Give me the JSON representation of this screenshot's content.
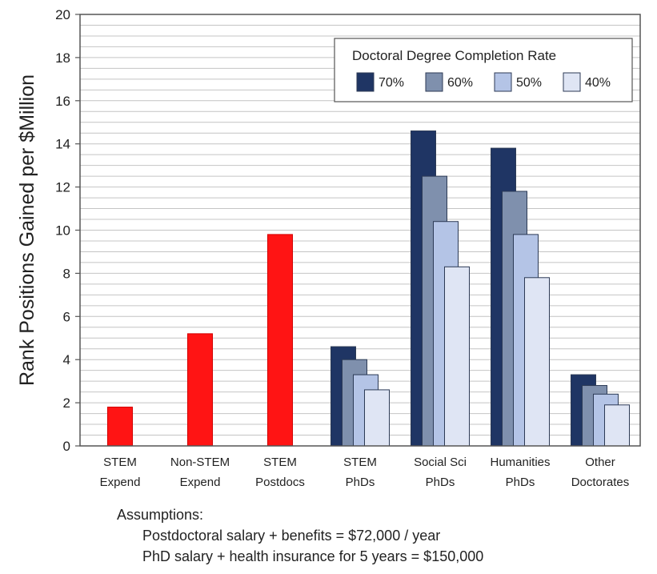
{
  "chart_data": {
    "type": "bar",
    "ylabel": "Rank Positions Gained per $Million",
    "ylim": [
      0,
      20
    ],
    "yticks": [
      0,
      2,
      4,
      6,
      8,
      10,
      12,
      14,
      16,
      18,
      20
    ],
    "grid": true,
    "legend": {
      "title": "Doctoral Degree Completion Rate",
      "placement": "top-right",
      "entries": [
        {
          "label": "70%",
          "color": "#1f3564"
        },
        {
          "label": "60%",
          "color": "#7f90ad"
        },
        {
          "label": "50%",
          "color": "#b4c4e6"
        },
        {
          "label": "40%",
          "color": "#dfe5f4"
        }
      ]
    },
    "groups": [
      {
        "label_lines": [
          "STEM",
          "Expend"
        ],
        "bars": [
          {
            "value": 1.8,
            "color": "#ff1414"
          }
        ]
      },
      {
        "label_lines": [
          "Non-STEM",
          "Expend"
        ],
        "bars": [
          {
            "value": 5.2,
            "color": "#ff1414"
          }
        ]
      },
      {
        "label_lines": [
          "STEM",
          "Postdocs"
        ],
        "bars": [
          {
            "value": 9.8,
            "color": "#ff1414"
          }
        ]
      },
      {
        "label_lines": [
          "STEM",
          "PhDs"
        ],
        "bars": [
          {
            "series": "70%",
            "value": 4.6,
            "color": "#1f3564"
          },
          {
            "series": "60%",
            "value": 4.0,
            "color": "#7f90ad"
          },
          {
            "series": "50%",
            "value": 3.3,
            "color": "#b4c4e6"
          },
          {
            "series": "40%",
            "value": 2.6,
            "color": "#dfe5f4"
          }
        ]
      },
      {
        "label_lines": [
          "Social Sci",
          "PhDs"
        ],
        "bars": [
          {
            "series": "70%",
            "value": 14.6,
            "color": "#1f3564"
          },
          {
            "series": "60%",
            "value": 12.5,
            "color": "#7f90ad"
          },
          {
            "series": "50%",
            "value": 10.4,
            "color": "#b4c4e6"
          },
          {
            "series": "40%",
            "value": 8.3,
            "color": "#dfe5f4"
          }
        ]
      },
      {
        "label_lines": [
          "Humanities",
          "PhDs"
        ],
        "bars": [
          {
            "series": "70%",
            "value": 13.8,
            "color": "#1f3564"
          },
          {
            "series": "60%",
            "value": 11.8,
            "color": "#7f90ad"
          },
          {
            "series": "50%",
            "value": 9.8,
            "color": "#b4c4e6"
          },
          {
            "series": "40%",
            "value": 7.8,
            "color": "#dfe5f4"
          }
        ]
      },
      {
        "label_lines": [
          "Other",
          "Doctorates"
        ],
        "bars": [
          {
            "series": "70%",
            "value": 3.3,
            "color": "#1f3564"
          },
          {
            "series": "60%",
            "value": 2.8,
            "color": "#7f90ad"
          },
          {
            "series": "50%",
            "value": 2.4,
            "color": "#b4c4e6"
          },
          {
            "series": "40%",
            "value": 1.9,
            "color": "#dfe5f4"
          }
        ]
      }
    ]
  },
  "assumptions": {
    "heading": "Assumptions:",
    "lines": [
      "Postdoctoral salary + benefits = $72,000 / year",
      "PhD salary + health insurance  for 5 years = $150,000"
    ]
  }
}
